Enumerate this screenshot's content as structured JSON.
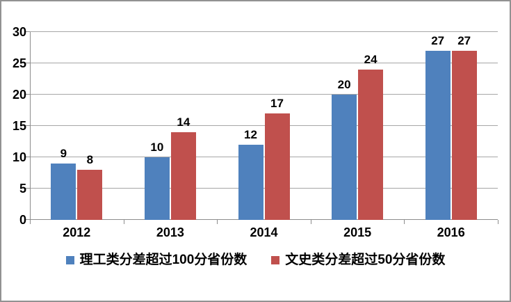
{
  "chart_data": {
    "type": "bar",
    "title": "",
    "xlabel": "",
    "ylabel": "",
    "categories": [
      "2012",
      "2013",
      "2014",
      "2015",
      "2016"
    ],
    "series": [
      {
        "name": "理工类分差超过100分省份数",
        "color": "#4F81BD",
        "values": [
          9,
          10,
          12,
          20,
          27
        ]
      },
      {
        "name": "文史类分差超过50分省份数",
        "color": "#C0504D",
        "values": [
          8,
          14,
          17,
          24,
          27
        ]
      }
    ],
    "yticks": [
      0,
      5,
      10,
      15,
      20,
      25,
      30
    ],
    "ylim": [
      0,
      30
    ],
    "grid": true,
    "legend_position": "bottom",
    "data_labels": true
  },
  "colors": {
    "series_blue": "#4F81BD",
    "series_red": "#C0504D",
    "gridline": "#A6A6A6",
    "axis": "#8C8C8C",
    "frame_border": "#929292",
    "background": "#FFFFFF",
    "text": "#000000"
  }
}
